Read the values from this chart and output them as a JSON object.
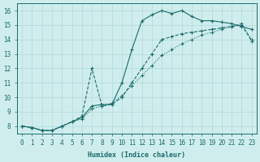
{
  "xlabel": "Humidex (Indice chaleur)",
  "bg_color": "#d0eded",
  "line_color": "#1a6b6b",
  "grid_color": "#b0d8d8",
  "xlim": [
    -0.5,
    23.5
  ],
  "ylim": [
    7.5,
    16.5
  ],
  "xticks": [
    0,
    1,
    2,
    3,
    4,
    5,
    6,
    7,
    8,
    9,
    10,
    11,
    12,
    13,
    14,
    15,
    16,
    17,
    18,
    19,
    20,
    21,
    22,
    23
  ],
  "yticks": [
    8,
    9,
    10,
    11,
    12,
    13,
    14,
    15,
    16
  ],
  "series1_x": [
    0,
    1,
    2,
    3,
    4,
    5,
    6,
    7,
    8,
    9,
    10,
    11,
    12,
    13,
    14,
    15,
    16,
    17,
    18,
    19,
    20,
    21,
    22,
    23
  ],
  "series1_y": [
    8.0,
    7.9,
    7.7,
    7.7,
    8.0,
    8.3,
    8.6,
    9.4,
    9.5,
    9.5,
    11.0,
    13.3,
    15.3,
    15.7,
    16.0,
    15.8,
    16.0,
    15.6,
    15.3,
    15.3,
    15.2,
    15.1,
    14.9,
    14.7
  ],
  "series2_x": [
    0,
    1,
    2,
    3,
    4,
    5,
    6,
    7,
    8,
    9,
    10,
    11,
    12,
    13,
    14,
    15,
    16,
    17,
    18,
    19,
    20,
    21,
    22,
    23
  ],
  "series2_y": [
    8.0,
    7.9,
    7.7,
    7.7,
    8.0,
    8.3,
    8.7,
    12.0,
    9.4,
    9.5,
    10.0,
    11.0,
    12.0,
    13.0,
    14.0,
    14.2,
    14.4,
    14.5,
    14.6,
    14.7,
    14.8,
    14.9,
    15.0,
    13.9
  ],
  "series3_x": [
    0,
    1,
    2,
    3,
    4,
    5,
    6,
    7,
    8,
    9,
    10,
    11,
    12,
    13,
    14,
    15,
    16,
    17,
    18,
    19,
    20,
    21,
    22,
    23
  ],
  "series3_y": [
    8.0,
    7.9,
    7.7,
    7.7,
    8.0,
    8.3,
    8.5,
    9.2,
    9.4,
    9.6,
    10.1,
    10.8,
    11.5,
    12.2,
    12.9,
    13.3,
    13.7,
    14.0,
    14.3,
    14.5,
    14.7,
    14.9,
    15.1,
    14.0
  ],
  "tick_fontsize": 5.5,
  "xlabel_fontsize": 6.0
}
